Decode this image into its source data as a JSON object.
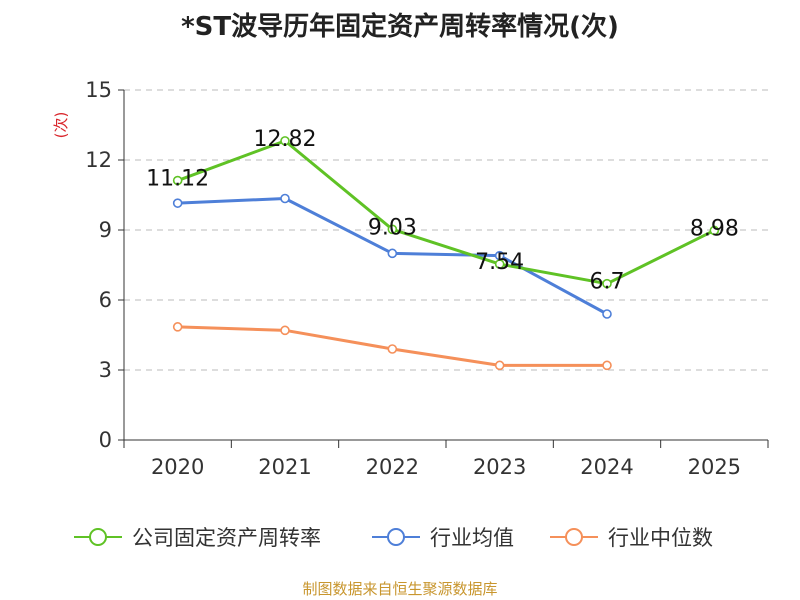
{
  "chart_data": {
    "type": "line",
    "title": "*ST波导历年固定资产周转率情况(次)",
    "ylabel": "(次)",
    "categories": [
      "2020",
      "2021",
      "2022",
      "2023",
      "2024",
      "2025"
    ],
    "ylim": [
      0,
      15
    ],
    "yticks": [
      0,
      3,
      6,
      9,
      12,
      15
    ],
    "grid": true,
    "legend_position": "bottom",
    "series": [
      {
        "name": "公司固定资产周转率",
        "color": "#5fc225",
        "values": [
          11.12,
          12.82,
          9.03,
          7.54,
          6.7,
          8.98
        ],
        "labels": [
          "11.12",
          "12.82",
          "9.03",
          "7.54",
          "6.7",
          "8.98"
        ]
      },
      {
        "name": "行业均值",
        "color": "#4e7fd8",
        "values": [
          10.15,
          10.35,
          8.0,
          7.9,
          5.4,
          null
        ]
      },
      {
        "name": "行业中位数",
        "color": "#f5905a",
        "values": [
          4.85,
          4.7,
          3.9,
          3.2,
          3.2,
          null
        ]
      }
    ]
  },
  "source": "制图数据来自恒生聚源数据库"
}
